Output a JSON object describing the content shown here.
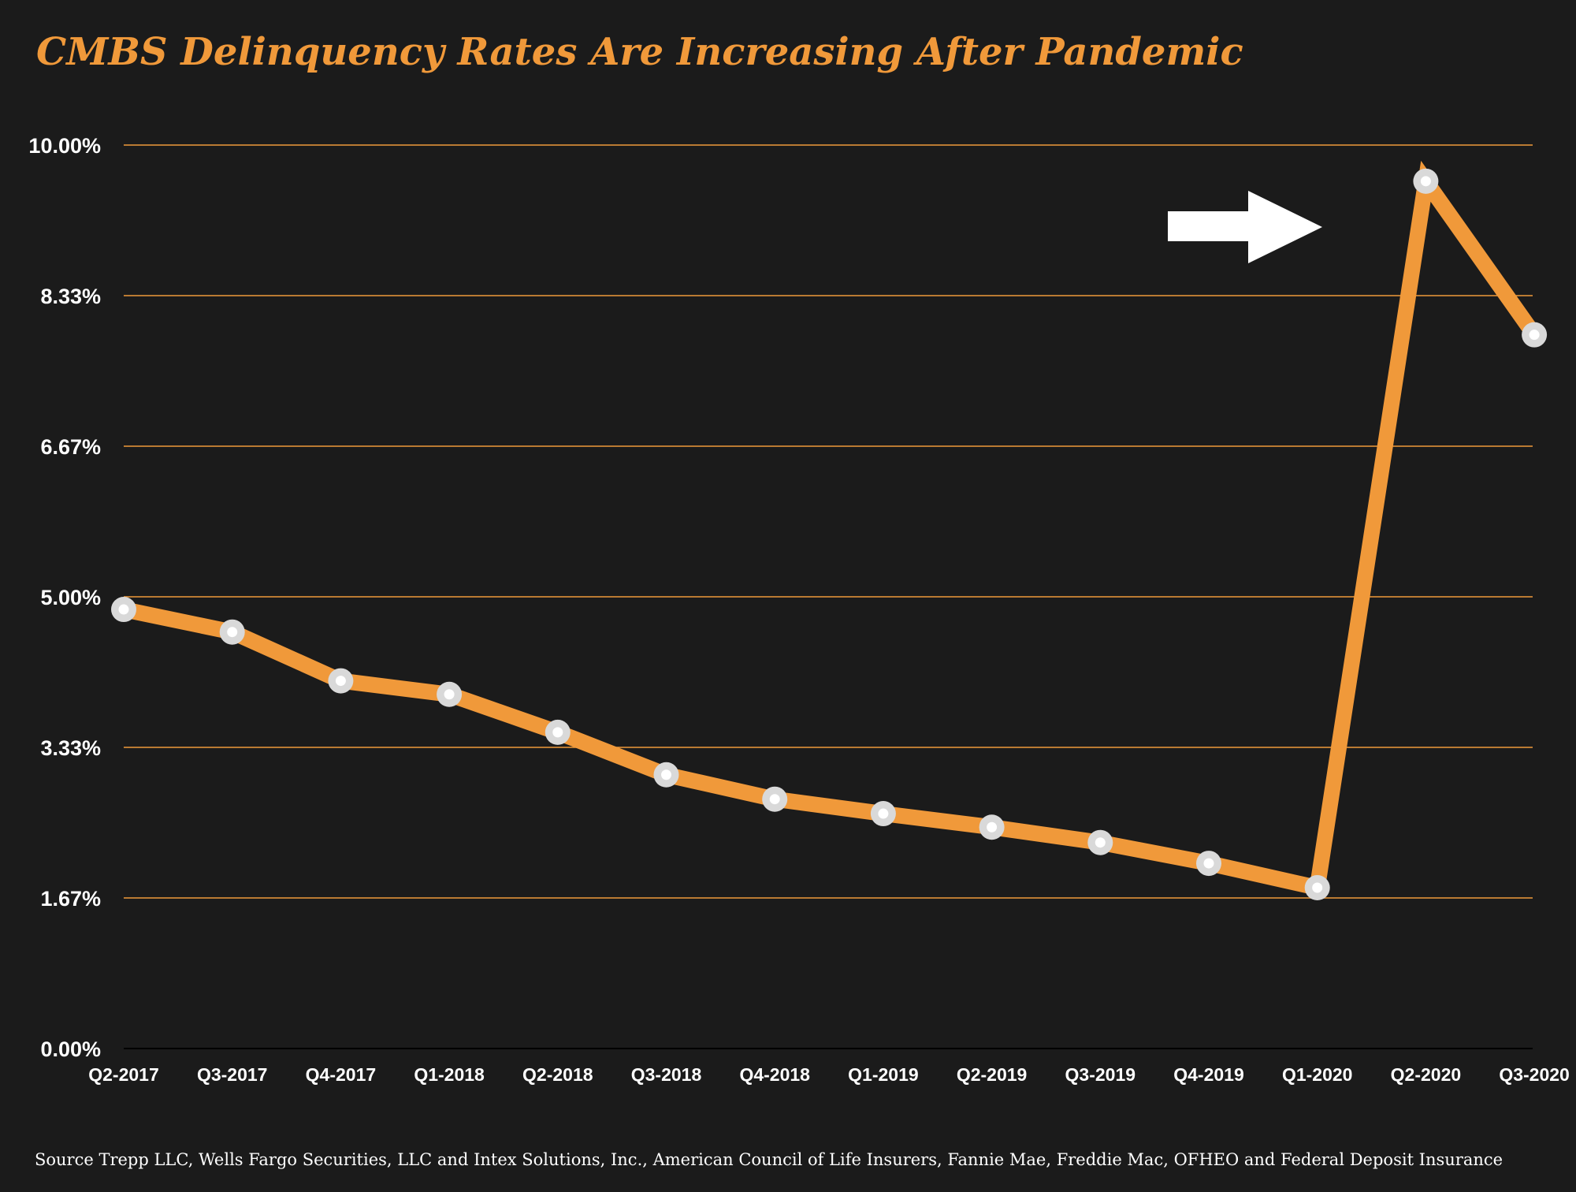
{
  "chart_data": {
    "type": "line",
    "title": "CMBS Delinquency Rates Are Increasing After Pandemic",
    "xlabel": "",
    "ylabel": "",
    "categories": [
      "Q2-2017",
      "Q3-2017",
      "Q4-2017",
      "Q1-2018",
      "Q2-2018",
      "Q3-2018",
      "Q4-2018",
      "Q1-2019",
      "Q2-2019",
      "Q3-2019",
      "Q4-2019",
      "Q1-2020",
      "Q2-2020",
      "Q3-2020"
    ],
    "series": [
      {
        "name": "CMBS Delinquency Rate",
        "values": [
          4.86,
          4.61,
          4.07,
          3.92,
          3.5,
          3.03,
          2.76,
          2.6,
          2.45,
          2.28,
          2.05,
          1.78,
          9.6,
          7.9
        ]
      }
    ],
    "y_ticks": [
      "0.00%",
      "1.67%",
      "3.33%",
      "5.00%",
      "6.67%",
      "8.33%",
      "10.00%"
    ],
    "ylim": [
      0,
      10
    ],
    "grid": true,
    "annotation": "arrow pointing to Q2-2020 peak",
    "source": "Source Trepp LLC, Wells Fargo Securities, LLC and Intex Solutions, Inc., American Council of Life Insurers, Fannie Mae, Freddie Mac, OFHEO and Federal Deposit Insurance"
  },
  "colors": {
    "background": "#1b1b1b",
    "accent": "#f0993a",
    "marker_ring": "#d9d9d9",
    "marker_center": "#ffffff",
    "text": "#ffffff"
  }
}
